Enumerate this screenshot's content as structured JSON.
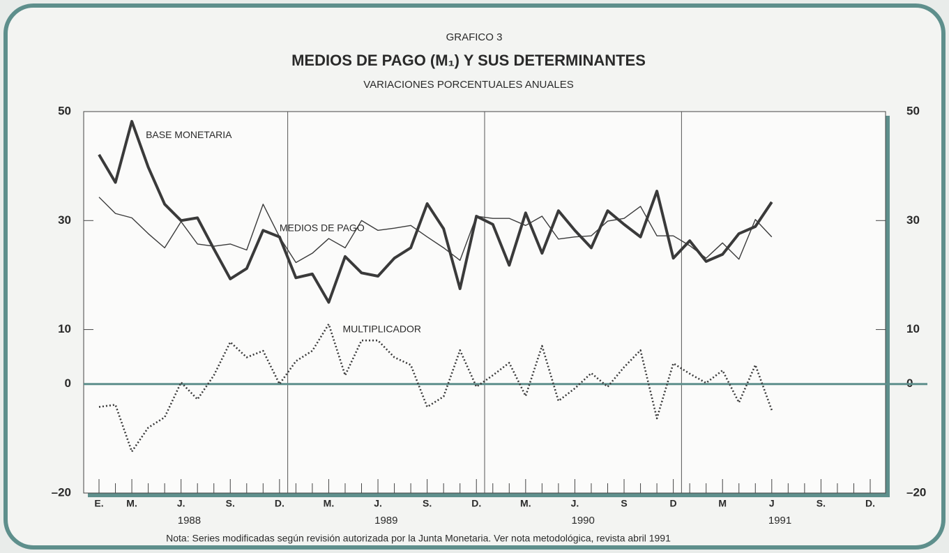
{
  "chart_data": {
    "type": "line",
    "label": "GRAFICO 3",
    "title": "MEDIOS DE PAGO (M₁) Y SUS DETERMINANTES",
    "subtitle": "VARIACIONES PORCENTUALES ANUALES",
    "note": "Nota: Series modificadas según revisión autorizada por la Junta Monetaria. Ver nota metodológica, revista abril 1991",
    "categories": [
      "E.",
      null,
      "M.",
      null,
      null,
      "J.",
      null,
      null,
      "S.",
      null,
      null,
      "D.",
      null,
      null,
      "M.",
      null,
      null,
      "J.",
      null,
      null,
      "S.",
      null,
      null,
      "D.",
      null,
      null,
      "M.",
      null,
      null,
      "J.",
      null,
      null,
      "S",
      null,
      null,
      "D",
      null,
      null,
      "M",
      null,
      null,
      "J",
      null,
      null,
      "S.",
      null,
      null,
      "D."
    ],
    "years": [
      "1988",
      "1989",
      "1990",
      "1991"
    ],
    "ylim": [
      -20,
      50
    ],
    "yticks": [
      {
        "value": -20,
        "label": "–20"
      },
      0,
      10,
      30,
      50
    ],
    "series": [
      {
        "name": "BASE MONETARIA",
        "color": "#3a3a3a",
        "width": 4,
        "dash": "none",
        "values": [
          42.1,
          37,
          48.2,
          39.8,
          33,
          30,
          30.5,
          24.8,
          19.3,
          21.2,
          28.2,
          27,
          19.5,
          20.2,
          15,
          23.4,
          20.4,
          19.8,
          23.1,
          25,
          33.1,
          28.5,
          17.5,
          30.8,
          29.3,
          21.8,
          31.4,
          24,
          31.8,
          28.2,
          25,
          31.8,
          29.3,
          27,
          35.4,
          23.1,
          26.3,
          22.5,
          23.8,
          27.6,
          28.9,
          33.4,
          null,
          null,
          null,
          null,
          null,
          null
        ]
      },
      {
        "name": "MEDIOS DE PAGO",
        "color": "#3a3a3a",
        "width": 1.4,
        "dash": "none",
        "values": [
          34.3,
          31.3,
          30.5,
          27.6,
          25,
          29.8,
          25.7,
          25.3,
          25.7,
          24.6,
          33,
          27,
          22.3,
          24,
          26.7,
          25,
          30,
          28.2,
          28.6,
          29.1,
          27,
          25,
          22.7,
          30.8,
          30.4,
          30.4,
          29.1,
          30.8,
          26.6,
          27,
          27.2,
          29.9,
          30.4,
          32.6,
          27.2,
          27.2,
          25.4,
          23.1,
          25.9,
          22.9,
          30.2,
          27,
          null,
          null,
          null,
          null,
          null,
          null
        ]
      },
      {
        "name": "MULTIPLICADOR",
        "color": "#3a3a3a",
        "width": 2.6,
        "dash": "2 3",
        "values": [
          -4.2,
          -3.8,
          -12.4,
          -8,
          -6.1,
          0.3,
          -2.8,
          1.6,
          7.7,
          4.9,
          6.1,
          0,
          4.2,
          6.1,
          11,
          1.6,
          8,
          8,
          4.9,
          3.5,
          -4.2,
          -2.3,
          6.2,
          -0.5,
          1.6,
          3.9,
          -2.2,
          7,
          -3.1,
          -0.8,
          2,
          -0.5,
          3.1,
          6.2,
          -6.3,
          3.8,
          1.9,
          0.2,
          2.5,
          -3.4,
          3.5,
          -4.8,
          null,
          null,
          null,
          null,
          null,
          null
        ]
      }
    ]
  }
}
